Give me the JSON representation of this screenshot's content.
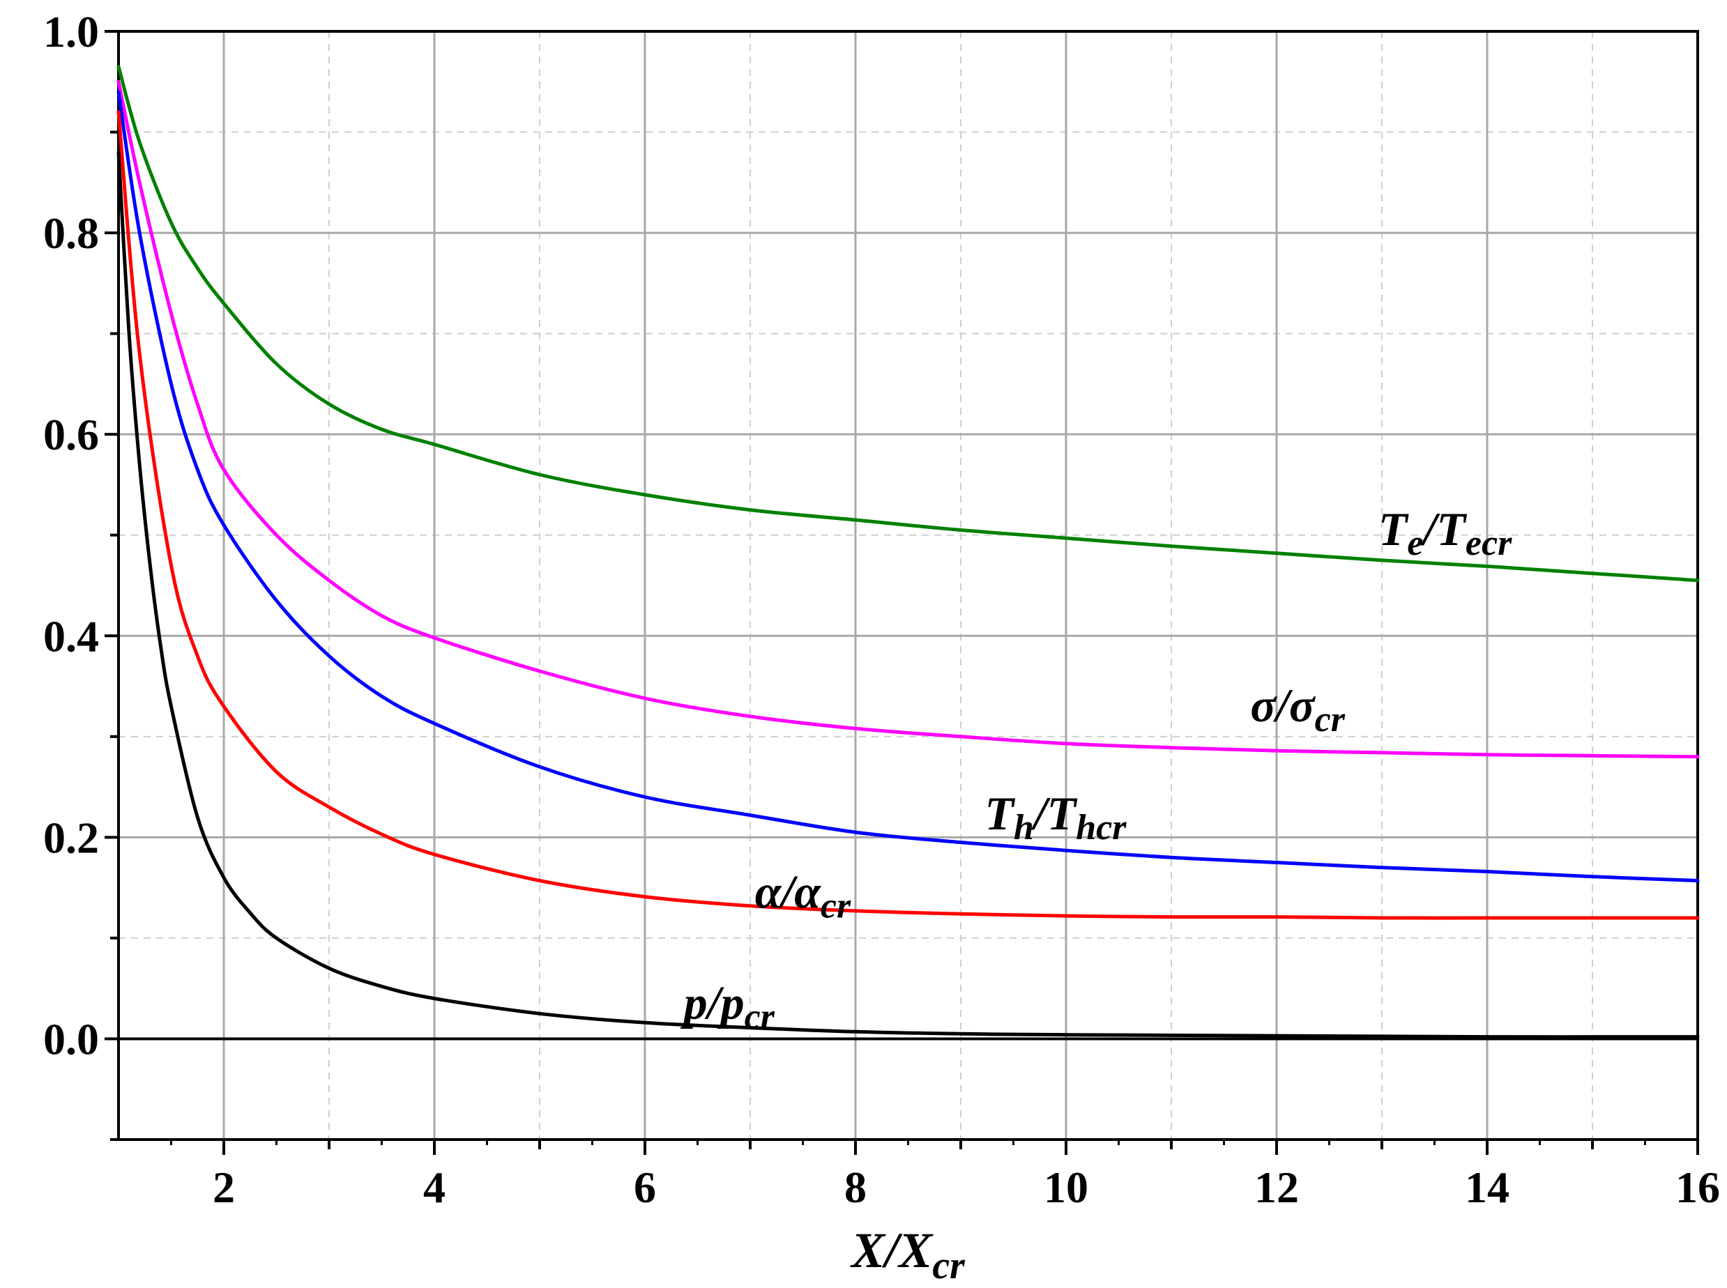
{
  "chart_data": {
    "type": "line",
    "xlabel": {
      "main": "X/X",
      "sub": "cr"
    },
    "ylabel": "",
    "xlim": [
      1,
      16
    ],
    "ylim": [
      -0.1,
      1.0
    ],
    "grid": true,
    "x_ticks": [
      {
        "value": 2,
        "label": "2"
      },
      {
        "value": 4,
        "label": "4"
      },
      {
        "value": 6,
        "label": "6"
      },
      {
        "value": 8,
        "label": "8"
      },
      {
        "value": 10,
        "label": "10"
      },
      {
        "value": 12,
        "label": "12"
      },
      {
        "value": 14,
        "label": "14"
      },
      {
        "value": 16,
        "label": "16"
      }
    ],
    "y_ticks": [
      {
        "value": 0.0,
        "label": "0.0"
      },
      {
        "value": 0.2,
        "label": "0.2"
      },
      {
        "value": 0.4,
        "label": "0.4"
      },
      {
        "value": 0.6,
        "label": "0.6"
      },
      {
        "value": 0.8,
        "label": "0.8"
      },
      {
        "value": 1.0,
        "label": "1.0"
      }
    ],
    "x_minor_ticks": [
      3,
      5,
      7,
      9,
      11,
      13,
      15
    ],
    "y_minor_ticks": [
      -0.1,
      0.1,
      0.3,
      0.5,
      0.7,
      0.9
    ],
    "series": [
      {
        "label_main": "T",
        "label_sub": "e",
        "label_sep": "/T",
        "label_sub2": "ecr",
        "color": "#008000",
        "label_at": {
          "x": 13.6,
          "y": 0.49
        },
        "x": [
          1,
          1.2,
          1.5,
          1.75,
          2,
          2.5,
          3,
          3.5,
          4,
          5,
          6,
          7,
          8,
          9,
          10,
          11,
          12,
          13,
          14,
          15,
          16
        ],
        "y": [
          0.965,
          0.89,
          0.81,
          0.765,
          0.73,
          0.67,
          0.63,
          0.605,
          0.59,
          0.56,
          0.54,
          0.525,
          0.515,
          0.505,
          0.497,
          0.489,
          0.482,
          0.475,
          0.469,
          0.462,
          0.455
        ]
      },
      {
        "label_main": "σ",
        "label_sub": "",
        "label_sep": "/σ",
        "label_sub2": "cr",
        "color": "#ff00ff",
        "label_at": {
          "x": 12.2,
          "y": 0.315
        },
        "x": [
          1,
          1.2,
          1.5,
          1.75,
          2,
          2.5,
          3,
          3.5,
          4,
          5,
          6,
          7,
          8,
          9,
          10,
          11,
          12,
          13,
          14,
          15,
          16
        ],
        "y": [
          0.95,
          0.85,
          0.72,
          0.63,
          0.565,
          0.5,
          0.455,
          0.42,
          0.398,
          0.365,
          0.338,
          0.32,
          0.308,
          0.3,
          0.293,
          0.289,
          0.286,
          0.284,
          0.282,
          0.281,
          0.28
        ]
      },
      {
        "label_main": "T",
        "label_sub": "h",
        "label_sep": "/T",
        "label_sub2": "hcr",
        "color": "#0000ff",
        "label_at": {
          "x": 9.9,
          "y": 0.208
        },
        "x": [
          1,
          1.2,
          1.5,
          1.75,
          2,
          2.5,
          3,
          3.5,
          4,
          5,
          6,
          7,
          8,
          9,
          10,
          11,
          12,
          13,
          14,
          15,
          16
        ],
        "y": [
          0.94,
          0.8,
          0.65,
          0.565,
          0.51,
          0.435,
          0.38,
          0.34,
          0.313,
          0.27,
          0.24,
          0.222,
          0.205,
          0.195,
          0.187,
          0.18,
          0.175,
          0.17,
          0.166,
          0.161,
          0.157
        ]
      },
      {
        "label_main": "α",
        "label_sub": "",
        "label_sep": "/α",
        "label_sub2": "cr",
        "color": "#ff0000",
        "label_at": {
          "x": 7.5,
          "y": 0.13
        },
        "x": [
          1,
          1.2,
          1.5,
          1.75,
          2,
          2.5,
          3,
          3.5,
          4,
          5,
          6,
          7,
          8,
          9,
          10,
          11,
          12,
          13,
          14,
          15,
          16
        ],
        "y": [
          0.92,
          0.68,
          0.47,
          0.38,
          0.33,
          0.265,
          0.23,
          0.203,
          0.183,
          0.157,
          0.141,
          0.132,
          0.127,
          0.124,
          0.122,
          0.121,
          0.121,
          0.12,
          0.12,
          0.12,
          0.12
        ]
      },
      {
        "label_main": "p",
        "label_sub": "",
        "label_sep": "/p",
        "label_sub2": "cr",
        "color": "#000000",
        "label_at": {
          "x": 6.8,
          "y": 0.02
        },
        "x": [
          1,
          1.1,
          1.2,
          1.3,
          1.4,
          1.5,
          1.75,
          2,
          2.25,
          2.5,
          3,
          3.5,
          4,
          5,
          6,
          7,
          8,
          9,
          10,
          12,
          14,
          16
        ],
        "y": [
          0.88,
          0.7,
          0.57,
          0.47,
          0.39,
          0.33,
          0.22,
          0.16,
          0.125,
          0.1,
          0.07,
          0.052,
          0.04,
          0.025,
          0.016,
          0.011,
          0.007,
          0.005,
          0.004,
          0.003,
          0.002,
          0.002
        ]
      }
    ]
  }
}
